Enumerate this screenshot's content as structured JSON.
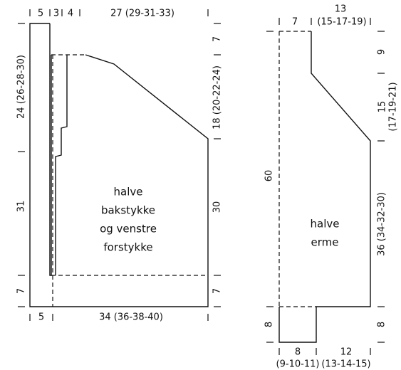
{
  "left_piece": {
    "top_labels": [
      "5",
      "3",
      "4",
      "27 (29-31-33)"
    ],
    "left_labels": [
      "24 (26-28-30)",
      "31",
      "7"
    ],
    "right_labels": [
      "7",
      "18 (20-22-24)",
      "30",
      "7"
    ],
    "bottom_labels": [
      "5",
      "34 (36-38-40)"
    ],
    "name_lines": [
      "halve",
      "bakstykke",
      "og venstre",
      "forstykke"
    ]
  },
  "right_piece": {
    "top_labels": [
      "7",
      "13",
      "(15-17-19)"
    ],
    "right_labels": [
      "9",
      "15",
      "(17-19-21)",
      "36 (34-32-30)",
      "8"
    ],
    "left_labels": [
      "60",
      "8"
    ],
    "bottom_labels": [
      "8",
      "(9-10-11)",
      "12",
      "(13-14-15)"
    ],
    "name_lines": [
      "halve",
      "erme"
    ]
  }
}
